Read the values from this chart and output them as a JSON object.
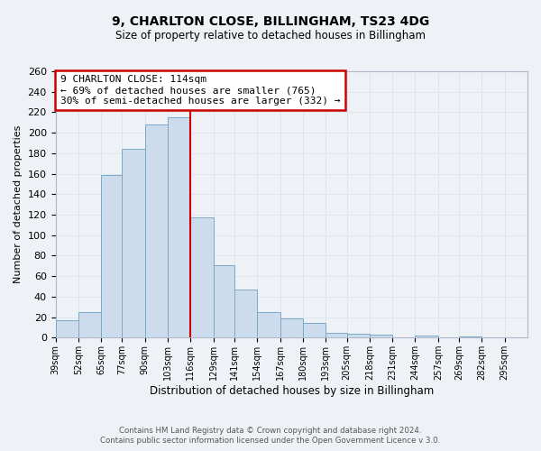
{
  "title": "9, CHARLTON CLOSE, BILLINGHAM, TS23 4DG",
  "subtitle": "Size of property relative to detached houses in Billingham",
  "xlabel": "Distribution of detached houses by size in Billingham",
  "ylabel": "Number of detached properties",
  "bar_left_edges": [
    39,
    52,
    65,
    77,
    90,
    103,
    116,
    129,
    141,
    154,
    167,
    180,
    193,
    205,
    218,
    231,
    244,
    257,
    269,
    282
  ],
  "bar_widths": [
    13,
    13,
    12,
    13,
    13,
    13,
    13,
    12,
    13,
    13,
    13,
    13,
    12,
    13,
    13,
    13,
    13,
    12,
    13,
    13
  ],
  "bar_heights": [
    17,
    25,
    159,
    184,
    208,
    215,
    117,
    71,
    47,
    25,
    19,
    14,
    5,
    4,
    3,
    0,
    2,
    0,
    1,
    0
  ],
  "tick_labels": [
    "39sqm",
    "52sqm",
    "65sqm",
    "77sqm",
    "90sqm",
    "103sqm",
    "116sqm",
    "129sqm",
    "141sqm",
    "154sqm",
    "167sqm",
    "180sqm",
    "193sqm",
    "205sqm",
    "218sqm",
    "231sqm",
    "244sqm",
    "257sqm",
    "269sqm",
    "282sqm",
    "295sqm"
  ],
  "tick_positions": [
    39,
    52,
    65,
    77,
    90,
    103,
    116,
    129,
    141,
    154,
    167,
    180,
    193,
    205,
    218,
    231,
    244,
    257,
    269,
    282,
    295
  ],
  "bar_color": "#ccdcec",
  "bar_edge_color": "#7aaac8",
  "vline_x": 116,
  "vline_color": "#cc0000",
  "ylim": [
    0,
    260
  ],
  "yticks": [
    0,
    20,
    40,
    60,
    80,
    100,
    120,
    140,
    160,
    180,
    200,
    220,
    240,
    260
  ],
  "annotation_title": "9 CHARLTON CLOSE: 114sqm",
  "annotation_line1": "← 69% of detached houses are smaller (765)",
  "annotation_line2": "30% of semi-detached houses are larger (332) →",
  "annotation_box_color": "#cc0000",
  "annotation_box_fill": "#ffffff",
  "footer_line1": "Contains HM Land Registry data © Crown copyright and database right 2024.",
  "footer_line2": "Contains public sector information licensed under the Open Government Licence v 3.0.",
  "grid_color": "#dde5ee",
  "background_color": "#eef2f7",
  "xlim_left": 39,
  "xlim_right": 308
}
